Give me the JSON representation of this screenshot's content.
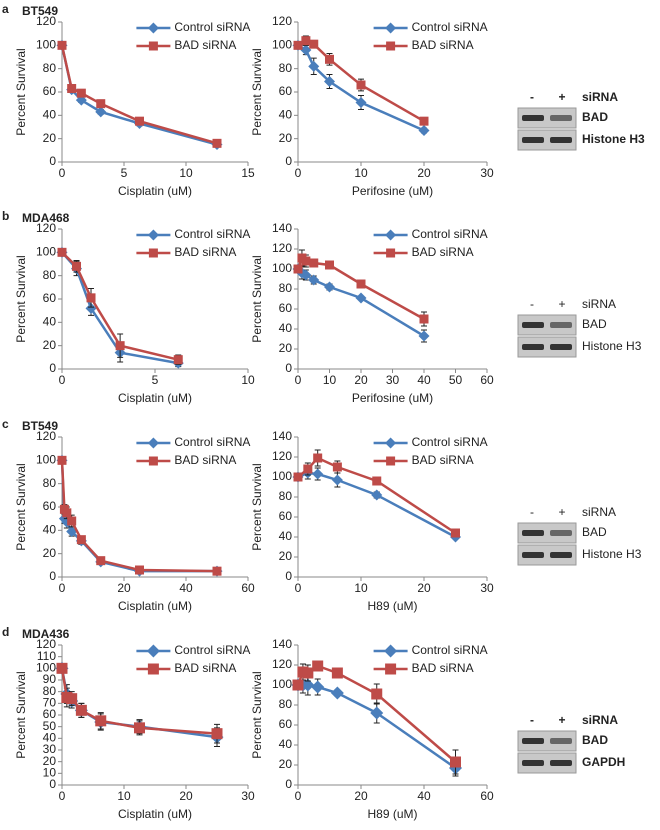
{
  "chart_data": [
    {
      "type": "line",
      "xlabel": "Cisplatin (uM)",
      "ylabel": "Percent Survival",
      "x": [
        0,
        0.78,
        1.56,
        3.125,
        6.25,
        12.5
      ],
      "xlim": [
        0,
        15
      ],
      "xticks": [
        0,
        5,
        10,
        15
      ],
      "ylim": [
        0,
        120
      ],
      "yticks": [
        0,
        20,
        40,
        60,
        80,
        100,
        120
      ],
      "legend": "upper right",
      "grid": false,
      "series": [
        {
          "name": "Control siRNA",
          "color": "#4a7ebb",
          "marker": "diamond",
          "values": [
            100,
            62,
            53,
            43,
            33,
            15
          ],
          "errors": [
            0,
            2,
            2,
            2,
            2,
            1
          ]
        },
        {
          "name": "BAD siRNA",
          "color": "#be4b48",
          "marker": "square",
          "values": [
            100,
            63,
            59,
            50,
            35,
            16
          ],
          "errors": [
            0,
            2,
            2,
            2,
            2,
            1
          ]
        }
      ]
    },
    {
      "type": "line",
      "xlabel": "Perifosine (uM)",
      "ylabel": "Percent Survival",
      "x": [
        0,
        1.25,
        2.5,
        5,
        10,
        20
      ],
      "xlim": [
        0,
        30
      ],
      "xticks": [
        0,
        10,
        20,
        30
      ],
      "ylim": [
        0,
        120
      ],
      "yticks": [
        0,
        20,
        40,
        60,
        80,
        100,
        120
      ],
      "legend": "upper right",
      "grid": false,
      "series": [
        {
          "name": "Control siRNA",
          "color": "#4a7ebb",
          "marker": "diamond",
          "values": [
            100,
            96,
            82,
            69,
            51,
            27
          ],
          "errors": [
            0,
            4,
            7,
            6,
            6,
            2
          ]
        },
        {
          "name": "BAD siRNA",
          "color": "#be4b48",
          "marker": "square",
          "values": [
            100,
            104,
            101,
            88,
            66,
            35
          ],
          "errors": [
            0,
            4,
            3,
            5,
            5,
            3
          ]
        }
      ]
    },
    {
      "type": "line",
      "xlabel": "Cisplatin (uM)",
      "ylabel": "Percent Survival",
      "x": [
        0,
        0.78,
        1.56,
        3.125,
        6.25
      ],
      "xlim": [
        0,
        10
      ],
      "xticks": [
        0,
        5,
        10
      ],
      "ylim": [
        0,
        120
      ],
      "yticks": [
        0,
        20,
        40,
        60,
        80,
        100,
        120
      ],
      "legend": "upper right",
      "grid": false,
      "series": [
        {
          "name": "Control siRNA",
          "color": "#4a7ebb",
          "marker": "diamond",
          "values": [
            100,
            86,
            52,
            14,
            5
          ],
          "errors": [
            0,
            6,
            6,
            8,
            3
          ]
        },
        {
          "name": "BAD siRNA",
          "color": "#be4b48",
          "marker": "square",
          "values": [
            100,
            88,
            61,
            20,
            8
          ],
          "errors": [
            0,
            5,
            8,
            10,
            4
          ]
        }
      ]
    },
    {
      "type": "line",
      "xlabel": "Perifosine (uM)",
      "ylabel": "Percent Survival",
      "x": [
        0,
        1.25,
        2.5,
        5,
        10,
        20,
        40
      ],
      "xlim": [
        0,
        60
      ],
      "xticks": [
        0,
        10,
        20,
        30,
        40,
        50,
        60
      ],
      "ylim": [
        0,
        140
      ],
      "yticks": [
        0,
        20,
        40,
        60,
        80,
        100,
        120,
        140
      ],
      "legend": "upper right",
      "grid": false,
      "series": [
        {
          "name": "Control siRNA",
          "color": "#4a7ebb",
          "marker": "diamond",
          "values": [
            100,
            96,
            94,
            89,
            82,
            71,
            33
          ],
          "errors": [
            0,
            6,
            5,
            4,
            3,
            2,
            6
          ]
        },
        {
          "name": "BAD siRNA",
          "color": "#be4b48",
          "marker": "square",
          "values": [
            100,
            111,
            108,
            106,
            104,
            85,
            50
          ],
          "errors": [
            0,
            8,
            6,
            4,
            3,
            2,
            7
          ]
        }
      ]
    },
    {
      "type": "line",
      "xlabel": "Cisplatin (uM)",
      "ylabel": "Percent Survival",
      "x": [
        0,
        0.78,
        1.56,
        3.125,
        6.25,
        12.5,
        25,
        50
      ],
      "xlim": [
        0,
        60
      ],
      "xticks": [
        0,
        20,
        40,
        60
      ],
      "ylim": [
        0,
        120
      ],
      "yticks": [
        0,
        20,
        40,
        60,
        80,
        100,
        120
      ],
      "legend": "upper right",
      "grid": false,
      "series": [
        {
          "name": "Control siRNA",
          "color": "#4a7ebb",
          "marker": "diamond",
          "values": [
            100,
            50,
            47,
            39,
            31,
            13,
            5,
            5
          ],
          "errors": [
            0,
            4,
            5,
            4,
            3,
            2,
            1,
            1
          ]
        },
        {
          "name": "BAD siRNA",
          "color": "#be4b48",
          "marker": "square",
          "values": [
            100,
            58,
            55,
            48,
            32,
            14,
            6,
            5
          ],
          "errors": [
            0,
            4,
            5,
            5,
            3,
            2,
            1,
            1
          ]
        }
      ]
    },
    {
      "type": "line",
      "xlabel": "H89 (uM)",
      "ylabel": "Percent Survival",
      "x": [
        0,
        1.56,
        3.125,
        6.25,
        12.5,
        25
      ],
      "xlim": [
        0,
        30
      ],
      "xticks": [
        0,
        10,
        20,
        30
      ],
      "ylim": [
        0,
        140
      ],
      "yticks": [
        0,
        20,
        40,
        60,
        80,
        100,
        120,
        140
      ],
      "legend": "upper right",
      "grid": false,
      "series": [
        {
          "name": "Control siRNA",
          "color": "#4a7ebb",
          "marker": "diamond",
          "values": [
            100,
            104,
            103,
            97,
            82,
            40
          ],
          "errors": [
            0,
            6,
            6,
            7,
            3,
            2
          ]
        },
        {
          "name": "BAD siRNA",
          "color": "#be4b48",
          "marker": "square",
          "values": [
            100,
            108,
            119,
            110,
            96,
            44
          ],
          "errors": [
            0,
            6,
            8,
            6,
            4,
            2
          ]
        }
      ]
    },
    {
      "type": "line",
      "xlabel": "Cisplatin (uM)",
      "ylabel": "Percent Survival",
      "x": [
        0,
        0.78,
        1.56,
        3.125,
        6.25,
        12.5,
        25
      ],
      "xlim": [
        0,
        30
      ],
      "xticks": [
        0,
        10,
        20,
        30
      ],
      "ylim": [
        0,
        120
      ],
      "yticks": [
        0,
        10,
        20,
        30,
        40,
        50,
        60,
        70,
        80,
        90,
        100,
        110,
        120
      ],
      "legend": "upper right",
      "grid": false,
      "series": [
        {
          "name": "Control siRNA",
          "color": "#4a7ebb",
          "marker": "diamond",
          "values": [
            100,
            78,
            72,
            64,
            54,
            50,
            41
          ],
          "errors": [
            0,
            8,
            6,
            6,
            7,
            6,
            8
          ]
        },
        {
          "name": "BAD siRNA",
          "color": "#be4b48",
          "marker": "square",
          "values": [
            100,
            75,
            74,
            64,
            55,
            49,
            44
          ],
          "errors": [
            0,
            8,
            6,
            6,
            7,
            6,
            8
          ]
        }
      ]
    },
    {
      "type": "line",
      "xlabel": "H89 (uM)",
      "ylabel": "Percent Survival",
      "x": [
        0,
        1.56,
        3.125,
        6.25,
        12.5,
        25,
        50
      ],
      "xlim": [
        0,
        60
      ],
      "xticks": [
        0,
        20,
        40,
        60
      ],
      "ylim": [
        0,
        140
      ],
      "yticks": [
        0,
        20,
        40,
        60,
        80,
        100,
        120,
        140
      ],
      "legend": "upper right",
      "grid": false,
      "series": [
        {
          "name": "Control siRNA",
          "color": "#4a7ebb",
          "marker": "diamond",
          "values": [
            100,
            100,
            100,
            98,
            92,
            72,
            17
          ],
          "errors": [
            0,
            8,
            10,
            8,
            3,
            10,
            8
          ]
        },
        {
          "name": "BAD siRNA",
          "color": "#be4b48",
          "marker": "square",
          "values": [
            100,
            113,
            112,
            119,
            112,
            91,
            23
          ],
          "errors": [
            0,
            8,
            8,
            5,
            3,
            10,
            12
          ]
        }
      ]
    }
  ],
  "panels": [
    {
      "label": "a",
      "title": "BT549",
      "blot": {
        "header": "siRNA",
        "lanes": [
          "-",
          "+"
        ],
        "bands": [
          "BAD",
          "Histone H3"
        ]
      }
    },
    {
      "label": "b",
      "title": "MDA468",
      "blot": {
        "header": "siRNA",
        "lanes": [
          "-",
          "+"
        ],
        "bands": [
          "BAD",
          "Histone H3"
        ]
      }
    },
    {
      "label": "c",
      "title": "BT549",
      "blot": {
        "header": "siRNA",
        "lanes": [
          "-",
          "+"
        ],
        "bands": [
          "BAD",
          "Histone H3"
        ]
      }
    },
    {
      "label": "d",
      "title": "MDA436",
      "blot": {
        "header": "siRNA",
        "lanes": [
          "-",
          "+"
        ],
        "bands": [
          "BAD",
          "GAPDH"
        ]
      }
    }
  ]
}
